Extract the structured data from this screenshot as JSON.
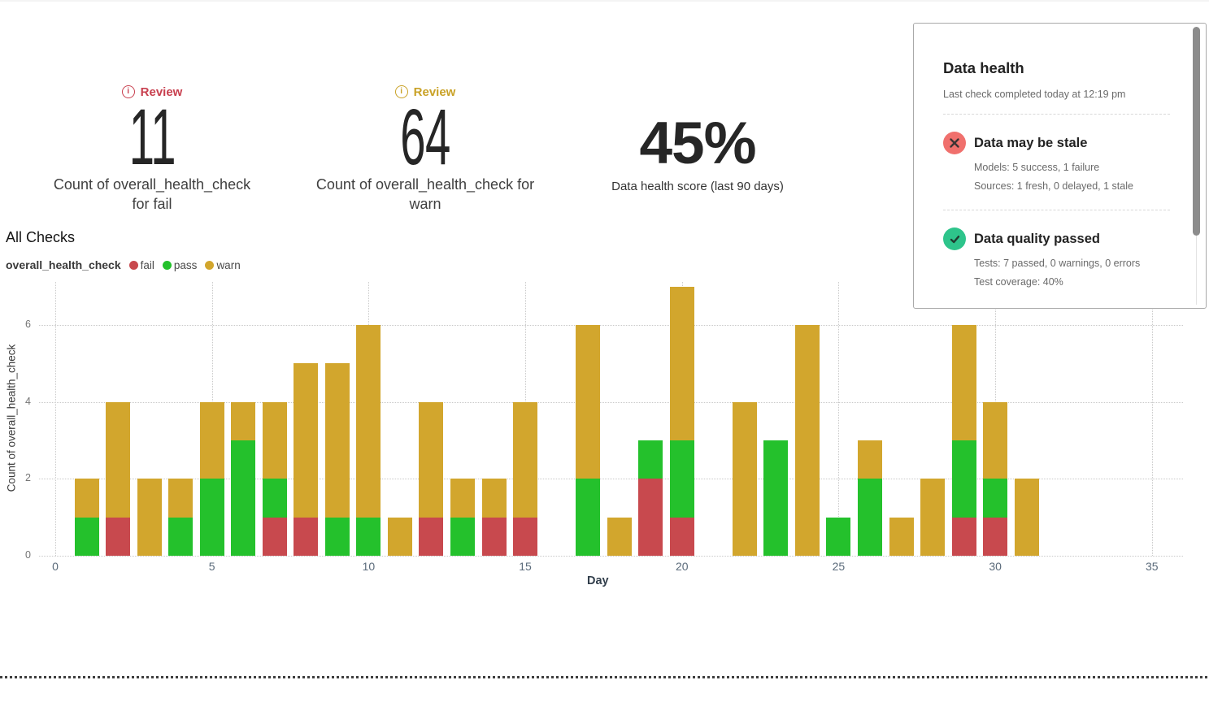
{
  "kpis": [
    {
      "review_label": "Review",
      "review_color": "#c8404f",
      "value": "11",
      "label_line1": "Count of overall_health_check",
      "label_line2": "for fail"
    },
    {
      "review_label": "Review",
      "review_color": "#c9a227",
      "value": "64",
      "label_line1": "Count of overall_health_check for",
      "label_line2": "warn"
    },
    {
      "value": "45%",
      "label_line1": "Data health score (last 90 days)"
    }
  ],
  "section_title": "All Checks",
  "legend": {
    "group": "overall_health_check",
    "items": [
      {
        "label": "fail",
        "color": "#c8494e"
      },
      {
        "label": "pass",
        "color": "#24c12c"
      },
      {
        "label": "warn",
        "color": "#d2a62d"
      }
    ]
  },
  "chart_data": {
    "type": "bar",
    "stacked": true,
    "title": "All Checks",
    "xlabel": "Day",
    "ylabel": "Count of overall_health_check",
    "x": [
      1,
      2,
      3,
      4,
      5,
      6,
      7,
      8,
      9,
      10,
      11,
      12,
      13,
      14,
      15,
      16,
      17,
      18,
      19,
      20,
      21,
      22,
      23,
      24,
      25,
      26,
      27,
      28,
      29,
      30,
      31
    ],
    "series": [
      {
        "name": "fail",
        "color": "#c8494e",
        "values": [
          0,
          1,
          0,
          0,
          0,
          0,
          1,
          1,
          0,
          0,
          0,
          1,
          0,
          1,
          1,
          0,
          0,
          0,
          2,
          1,
          0,
          0,
          0,
          0,
          0,
          0,
          0,
          0,
          1,
          1,
          0
        ]
      },
      {
        "name": "pass",
        "color": "#24c12c",
        "values": [
          1,
          0,
          0,
          1,
          2,
          3,
          1,
          0,
          1,
          1,
          0,
          0,
          1,
          0,
          0,
          0,
          2,
          0,
          1,
          2,
          0,
          0,
          3,
          0,
          1,
          2,
          0,
          0,
          2,
          1,
          0
        ]
      },
      {
        "name": "warn",
        "color": "#d2a62d",
        "values": [
          1,
          3,
          2,
          1,
          2,
          1,
          2,
          4,
          4,
          5,
          1,
          3,
          1,
          1,
          3,
          0,
          4,
          1,
          0,
          4,
          0,
          4,
          0,
          6,
          0,
          1,
          1,
          2,
          3,
          2,
          2
        ]
      }
    ],
    "xticks": [
      0,
      5,
      10,
      15,
      20,
      25,
      30,
      35
    ],
    "yticks": [
      0,
      2,
      4,
      6
    ],
    "xlim": [
      0,
      35
    ],
    "ylim": [
      0,
      7.1
    ],
    "grid": "dotted"
  },
  "panel": {
    "title": "Data health",
    "subtitle": "Last check completed today at 12:19 pm",
    "sections": [
      {
        "icon": "x-circle-icon",
        "title": "Data may be stale",
        "lines": [
          "Models: 5 success, 1 failure",
          "Sources: 1 fresh, 0 delayed, 1 stale"
        ]
      },
      {
        "icon": "check-circle-icon",
        "title": "Data quality passed",
        "lines": [
          "Tests: 7 passed, 0 warnings, 0 errors",
          "Test coverage: 40%"
        ]
      }
    ]
  }
}
